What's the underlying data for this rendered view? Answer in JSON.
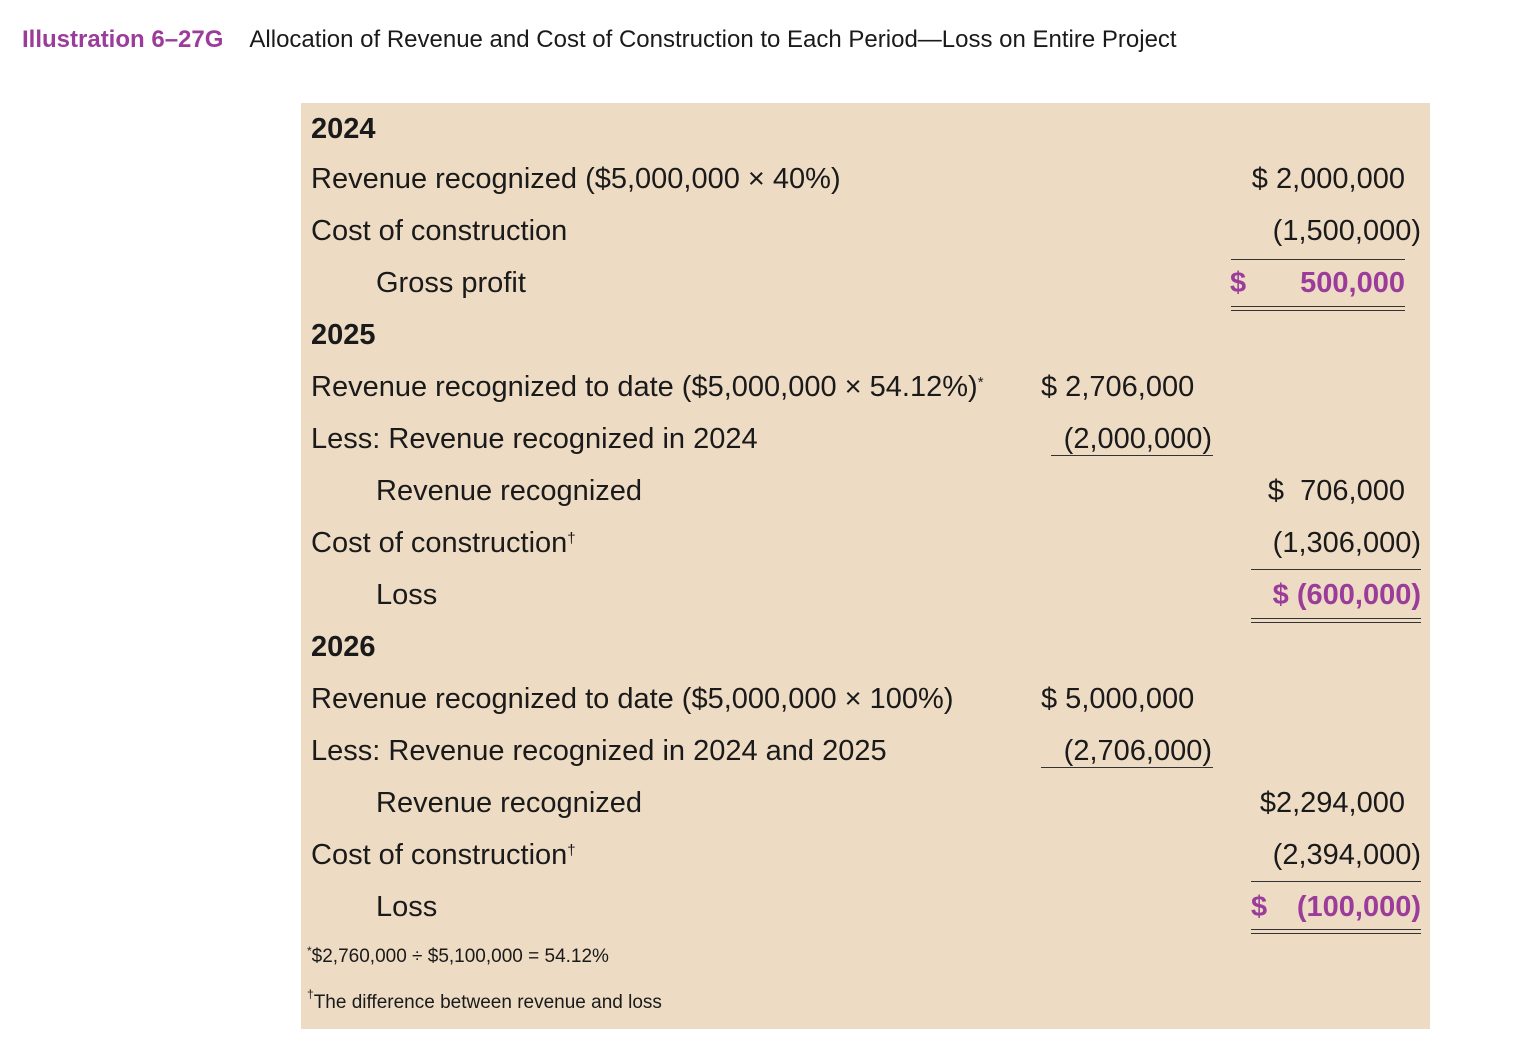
{
  "header": {
    "label": "Illustration 6–27G",
    "title": "Allocation of Revenue and Cost of Construction to Each Period—Loss on Entire Project"
  },
  "y2024": {
    "year": "2024",
    "revenue_label": "Revenue recognized ($5,000,000 × 40%)",
    "revenue_value": "$ 2,000,000",
    "cost_label": "Cost of construction",
    "cost_value": "(1,500,000)",
    "gp_label": "Gross profit",
    "gp_sign": "$",
    "gp_value": "500,000"
  },
  "y2025": {
    "year": "2025",
    "to_date_label": "Revenue recognized to date ($5,000,000 × 54.12%)",
    "to_date_mark": "*",
    "to_date_value": "$ 2,706,000",
    "less_label": "Less: Revenue recognized in 2024",
    "less_value": "(2,000,000)",
    "rev_label": "Revenue recognized",
    "rev_value": "$  706,000",
    "cost_label": "Cost of construction",
    "cost_mark": "†",
    "cost_value": "(1,306,000)",
    "loss_label": "Loss",
    "loss_value": "$ (600,000)"
  },
  "y2026": {
    "year": "2026",
    "to_date_label": "Revenue recognized to date ($5,000,000 × 100%)",
    "to_date_value": "$ 5,000,000",
    "less_label": "Less: Revenue recognized in 2024 and 2025",
    "less_value": "(2,706,000)",
    "rev_label": "Revenue recognized",
    "rev_value": "$2,294,000",
    "cost_label": "Cost of construction",
    "cost_mark": "†",
    "cost_value": "(2,394,000)",
    "loss_label": "Loss",
    "loss_sign": "$",
    "loss_value": "(100,000)"
  },
  "footnotes": {
    "star_mark": "*",
    "star_text": "$2,760,000 ÷ $5,100,000 = 54.12%",
    "dagger_mark": "†",
    "dagger_text": "The difference between revenue and loss"
  },
  "colors": {
    "accent": "#9b3c9b",
    "panel_background": "#eddbc4"
  }
}
